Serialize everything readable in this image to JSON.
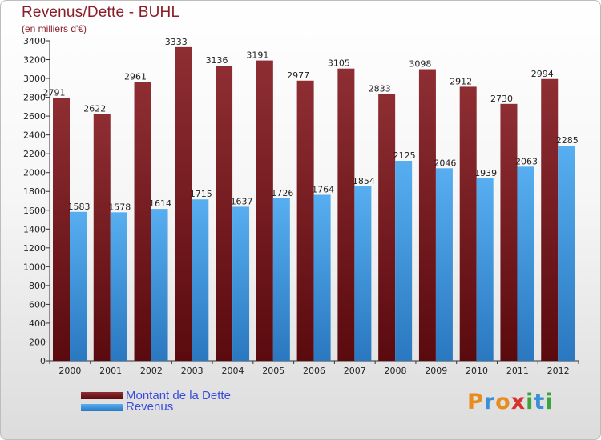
{
  "chart_data": {
    "type": "bar",
    "title": "Revenus/Dette - BUHL",
    "subtitle": "(en milliers d'€)",
    "categories": [
      "2000",
      "2001",
      "2002",
      "2003",
      "2004",
      "2005",
      "2006",
      "2007",
      "2008",
      "2009",
      "2010",
      "2011",
      "2012"
    ],
    "series": [
      {
        "name": "Montant de la Dette",
        "color": "#7a1e22",
        "values": [
          2791,
          2622,
          2961,
          3333,
          3136,
          3191,
          2977,
          3105,
          2833,
          3098,
          2912,
          2730,
          2994
        ]
      },
      {
        "name": "Revenus",
        "color": "#4aa3e6",
        "values": [
          1583,
          1578,
          1614,
          1715,
          1637,
          1726,
          1764,
          1854,
          2125,
          2046,
          1939,
          2063,
          2285
        ]
      }
    ],
    "ylim": [
      0,
      3400
    ],
    "yticks": [
      0,
      200,
      400,
      600,
      800,
      1000,
      1200,
      1400,
      1600,
      1800,
      2000,
      2200,
      2400,
      2600,
      2800,
      3000,
      3200,
      3400
    ],
    "grid": false,
    "legend_position": "bottom-left"
  },
  "brand": {
    "letters": [
      "P",
      "r",
      "o",
      "x",
      "i",
      "t",
      "i"
    ],
    "colors": [
      "#e98c1e",
      "#3a8fd6",
      "#e98c1e",
      "#d7322b",
      "#3aa63a",
      "#3a8fd6",
      "#3aa63a"
    ]
  }
}
